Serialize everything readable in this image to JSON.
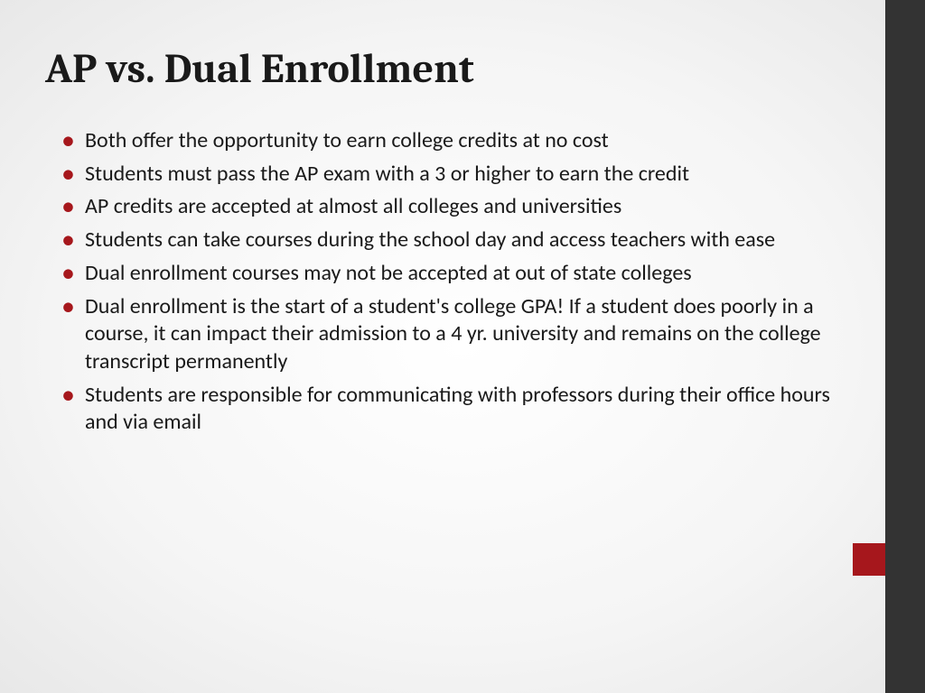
{
  "slide": {
    "title": "AP vs. Dual Enrollment",
    "bullets": [
      "Both offer the opportunity to earn college credits at no cost",
      "Students must pass the AP exam with a 3 or higher to earn the credit",
      "AP credits are accepted at almost all colleges and universities",
      "Students can take courses during the school day and access teachers with ease",
      "Dual enrollment courses may not be accepted at out of state colleges",
      "Dual enrollment is the start of a student's college GPA!  If a student does poorly in a course, it can impact their admission to a 4 yr. university and remains on the college transcript permanently",
      "Students are responsible for communicating with professors during their office hours and via email"
    ]
  },
  "theme": {
    "title_color": "#1a1a1a",
    "text_color": "#1a1a1a",
    "bullet_color": "#a6171c",
    "sidebar_dark": "#333333",
    "sidebar_accent": "#a6171c",
    "background": "#ffffff",
    "title_fontsize": 46,
    "body_fontsize": 24
  }
}
